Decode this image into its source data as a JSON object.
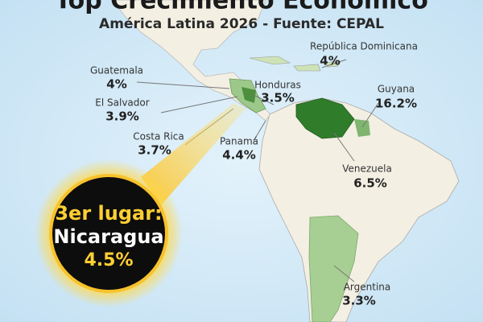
{
  "title": "Top Crecimiento Económico",
  "subtitle": "América Latina 2026 - Fuente: CEPAL",
  "highlight": {
    "rank": "3er lugar:",
    "name": "Nicaragua",
    "label": "4.5%"
  },
  "countries": [
    {
      "name": "Guatemala",
      "label": "4%"
    },
    {
      "name": "El Salvador",
      "label": "3.9%"
    },
    {
      "name": "Costa Rica",
      "label": "3.7%"
    },
    {
      "name": "Honduras",
      "label": "3.5%"
    },
    {
      "name": "Panamá",
      "label": "4.4%"
    },
    {
      "name": "República Dominicana",
      "label": "4%"
    },
    {
      "name": "Guyana",
      "label": "16.2%"
    },
    {
      "name": "Venezuela",
      "label": "6.5%"
    },
    {
      "name": "Argentina",
      "label": "3.3%"
    }
  ]
}
